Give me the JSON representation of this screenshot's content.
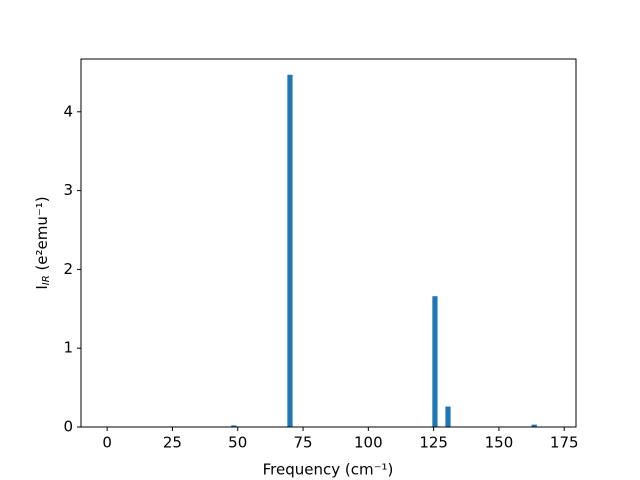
{
  "chart_data": {
    "type": "bar",
    "x": [
      48.5,
      70,
      125.5,
      130.5,
      163.5
    ],
    "values": [
      0.02,
      4.47,
      1.66,
      0.26,
      0.03
    ],
    "bar_width": 2,
    "color": "#1f77b4",
    "x_label": "Frequency (cm⁻¹)",
    "y_label": [
      "I",
      "IR",
      " (e²emu⁻¹)"
    ],
    "xlim": [
      -10,
      179.5
    ],
    "xticks": [
      0,
      25,
      50,
      75,
      100,
      125,
      150,
      175
    ],
    "ylim": [
      0,
      4.67
    ],
    "yticks": [
      0,
      1,
      2,
      3,
      4
    ],
    "grid": false
  }
}
